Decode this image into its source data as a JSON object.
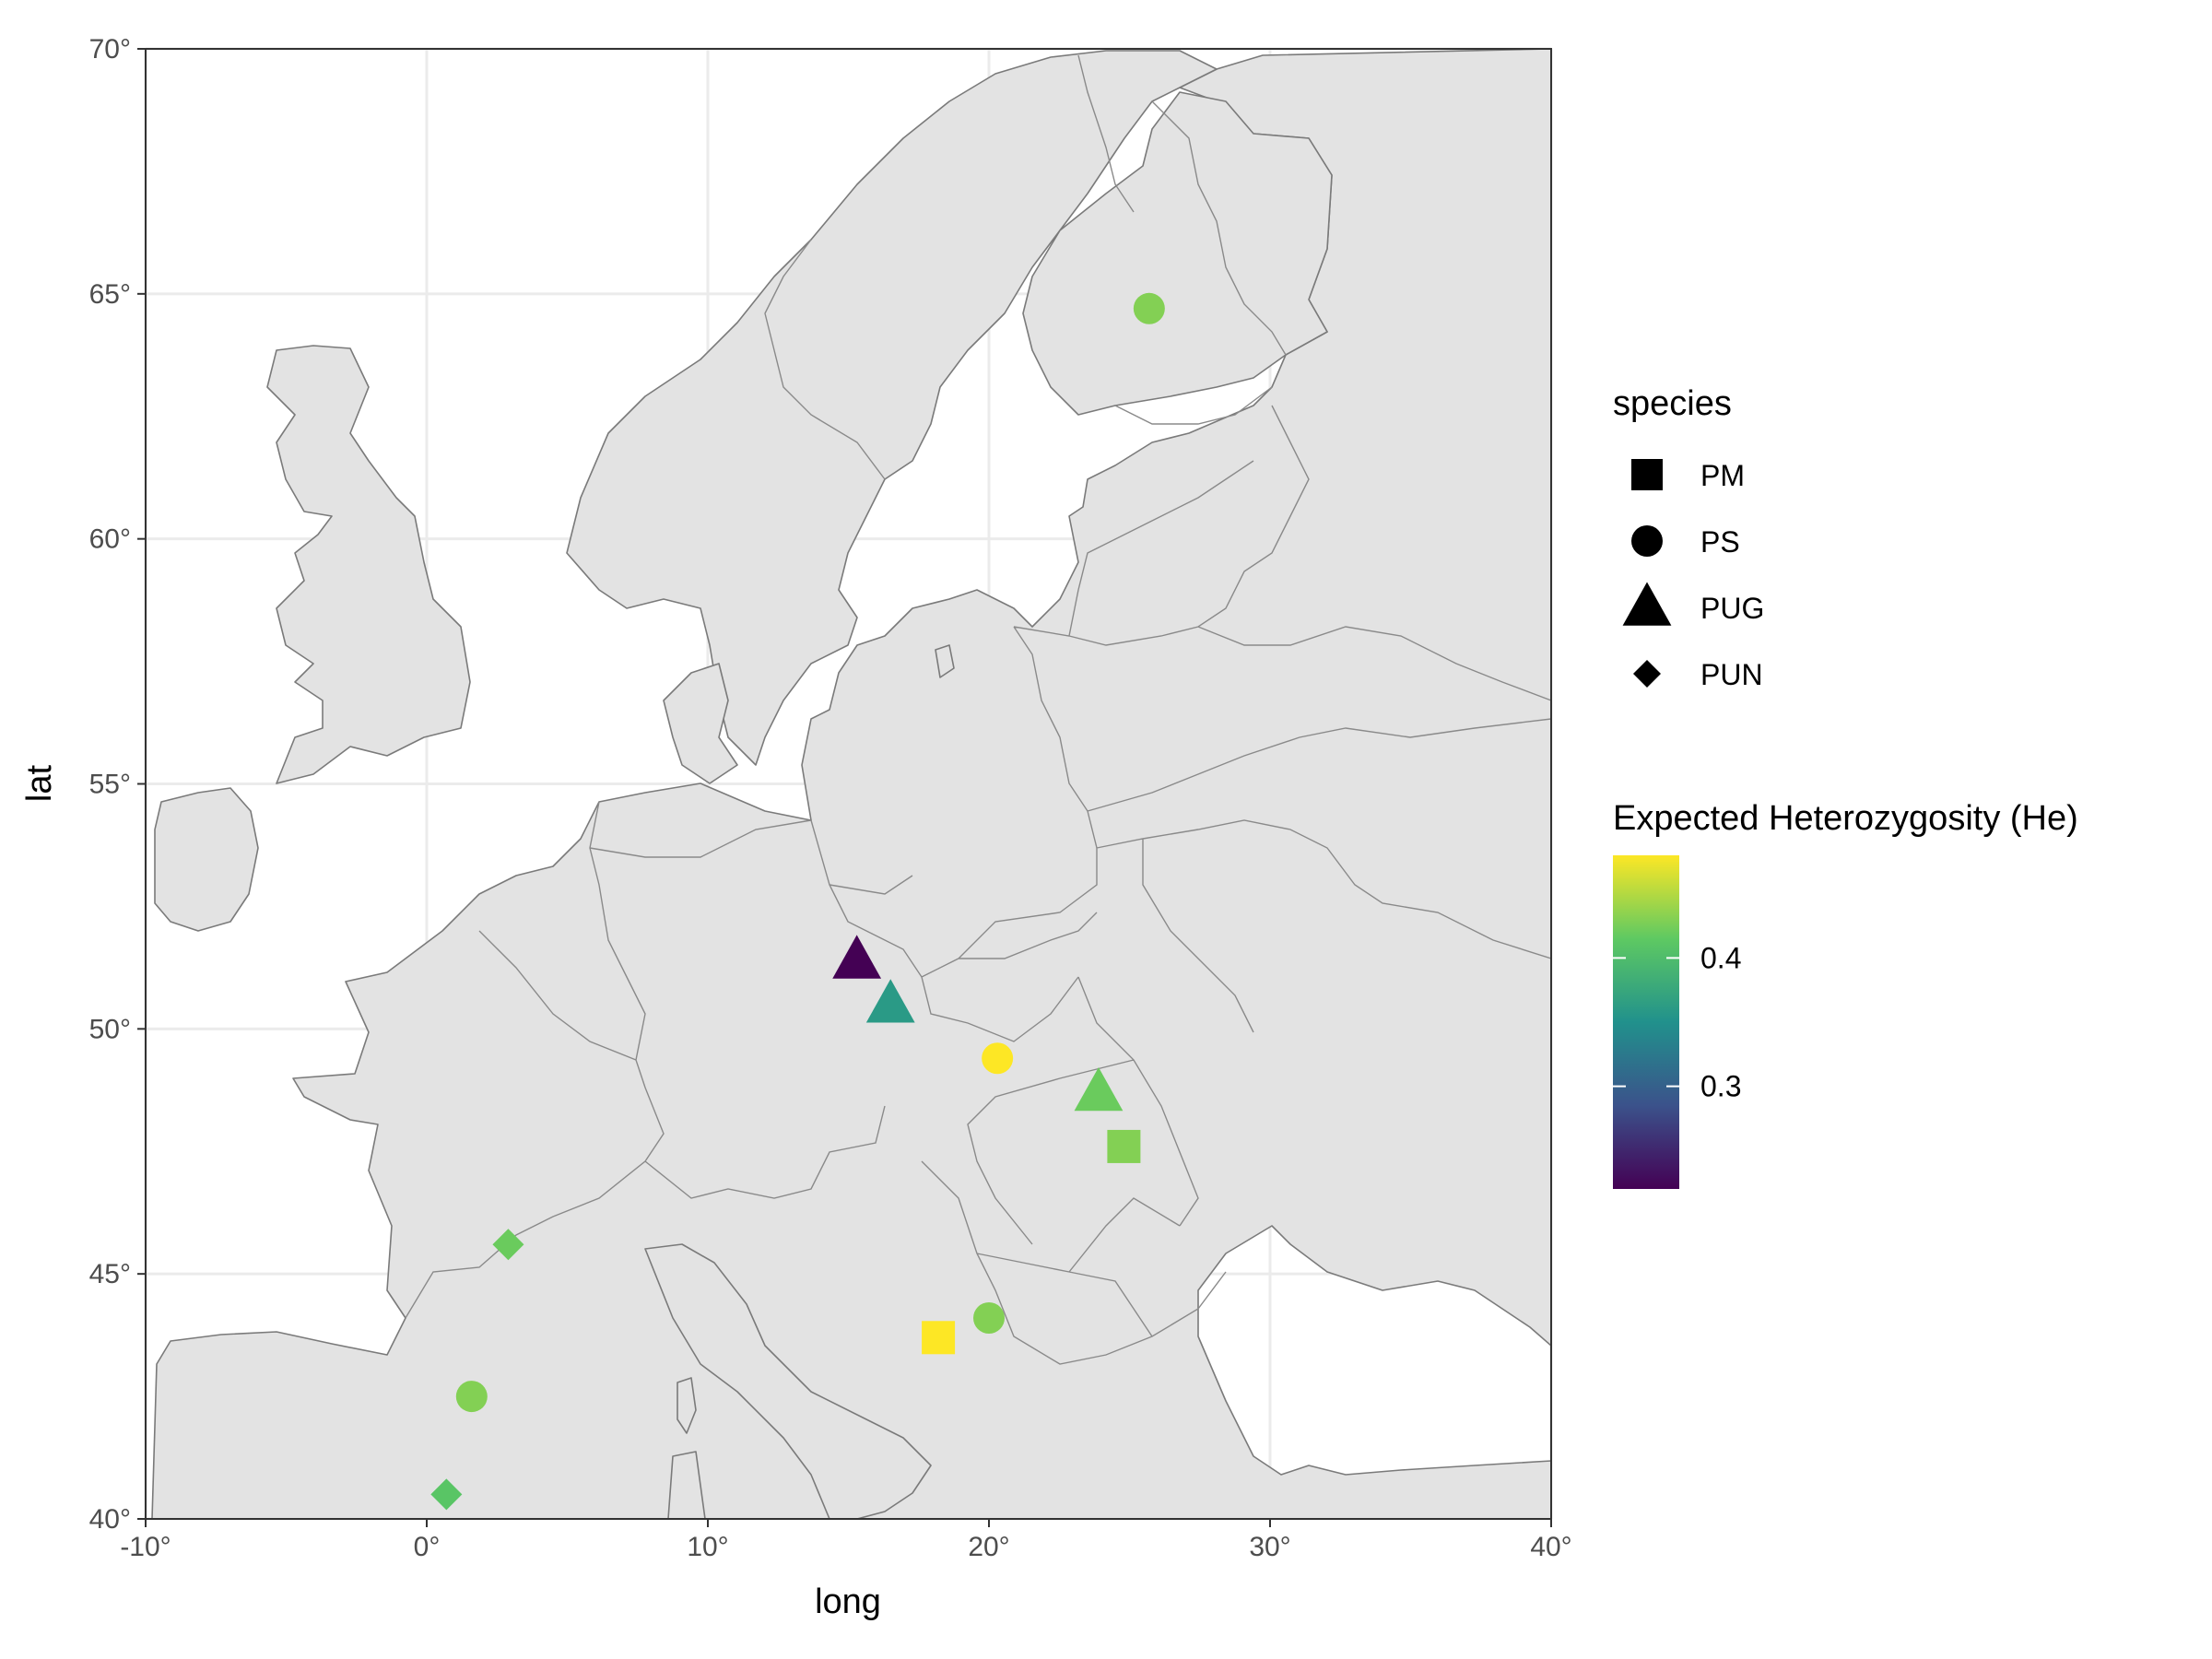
{
  "chart_data": {
    "type": "map-scatter",
    "xlabel": "long",
    "ylabel": "lat",
    "xlim": [
      -10,
      40
    ],
    "ylim": [
      40,
      70
    ],
    "x_ticks": [
      -10,
      0,
      10,
      20,
      30,
      40
    ],
    "x_tick_labels": [
      "-10°",
      "0°",
      "10°",
      "20°",
      "30°",
      "40°"
    ],
    "y_ticks": [
      40,
      45,
      50,
      55,
      60,
      65,
      70
    ],
    "y_tick_labels": [
      "40°",
      "45°",
      "50°",
      "55°",
      "60°",
      "65°",
      "70°"
    ],
    "grid": true,
    "points": [
      {
        "long": 25.7,
        "lat": 64.7,
        "species": "PS",
        "he": 0.43
      },
      {
        "long": 15.3,
        "lat": 51.4,
        "species": "PUG",
        "he": 0.22
      },
      {
        "long": 16.5,
        "lat": 50.5,
        "species": "PUG",
        "he": 0.36
      },
      {
        "long": 20.3,
        "lat": 49.4,
        "species": "PS",
        "he": 0.48
      },
      {
        "long": 23.9,
        "lat": 48.7,
        "species": "PUG",
        "he": 0.42
      },
      {
        "long": 24.8,
        "lat": 47.6,
        "species": "PM",
        "he": 0.43
      },
      {
        "long": 2.9,
        "lat": 45.6,
        "species": "PUN",
        "he": 0.42
      },
      {
        "long": 18.2,
        "lat": 43.7,
        "species": "PM",
        "he": 0.48
      },
      {
        "long": 20.0,
        "lat": 44.1,
        "species": "PS",
        "he": 0.43
      },
      {
        "long": 1.6,
        "lat": 42.5,
        "species": "PS",
        "he": 0.43
      },
      {
        "long": 0.7,
        "lat": 40.5,
        "species": "PUN",
        "he": 0.41
      }
    ],
    "legend": {
      "shape_title": "species",
      "shapes": [
        {
          "label": "PM",
          "shape": "square"
        },
        {
          "label": "PS",
          "shape": "circle"
        },
        {
          "label": "PUG",
          "shape": "triangle"
        },
        {
          "label": "PUN",
          "shape": "diamond"
        }
      ],
      "color_title": "Expected Heterozygosity (He)",
      "color_range": [
        0.22,
        0.48
      ],
      "color_ticks": [
        0.3,
        0.4
      ],
      "color_tick_labels": [
        "0.3",
        "0.4"
      ],
      "palette": [
        "#440154",
        "#3b528b",
        "#21918c",
        "#5ec962",
        "#fde725"
      ]
    }
  }
}
